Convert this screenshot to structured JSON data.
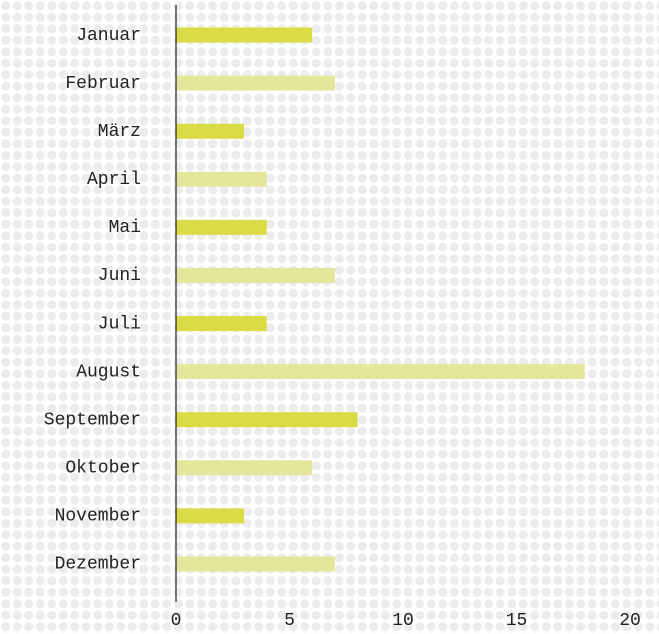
{
  "chart_data": {
    "type": "barh",
    "categories": [
      "Januar",
      "Februar",
      "März",
      "April",
      "Mai",
      "Juni",
      "Juli",
      "August",
      "September",
      "Oktober",
      "November",
      "Dezember"
    ],
    "values": [
      6,
      7,
      3,
      4,
      4,
      7,
      4,
      18,
      8,
      6,
      3,
      7
    ],
    "colors": [
      "#d9dc45",
      "#e3e69b"
    ],
    "xlim": [
      0,
      20
    ],
    "xticks": [
      0,
      5,
      10,
      15,
      20
    ],
    "grid": false
  }
}
